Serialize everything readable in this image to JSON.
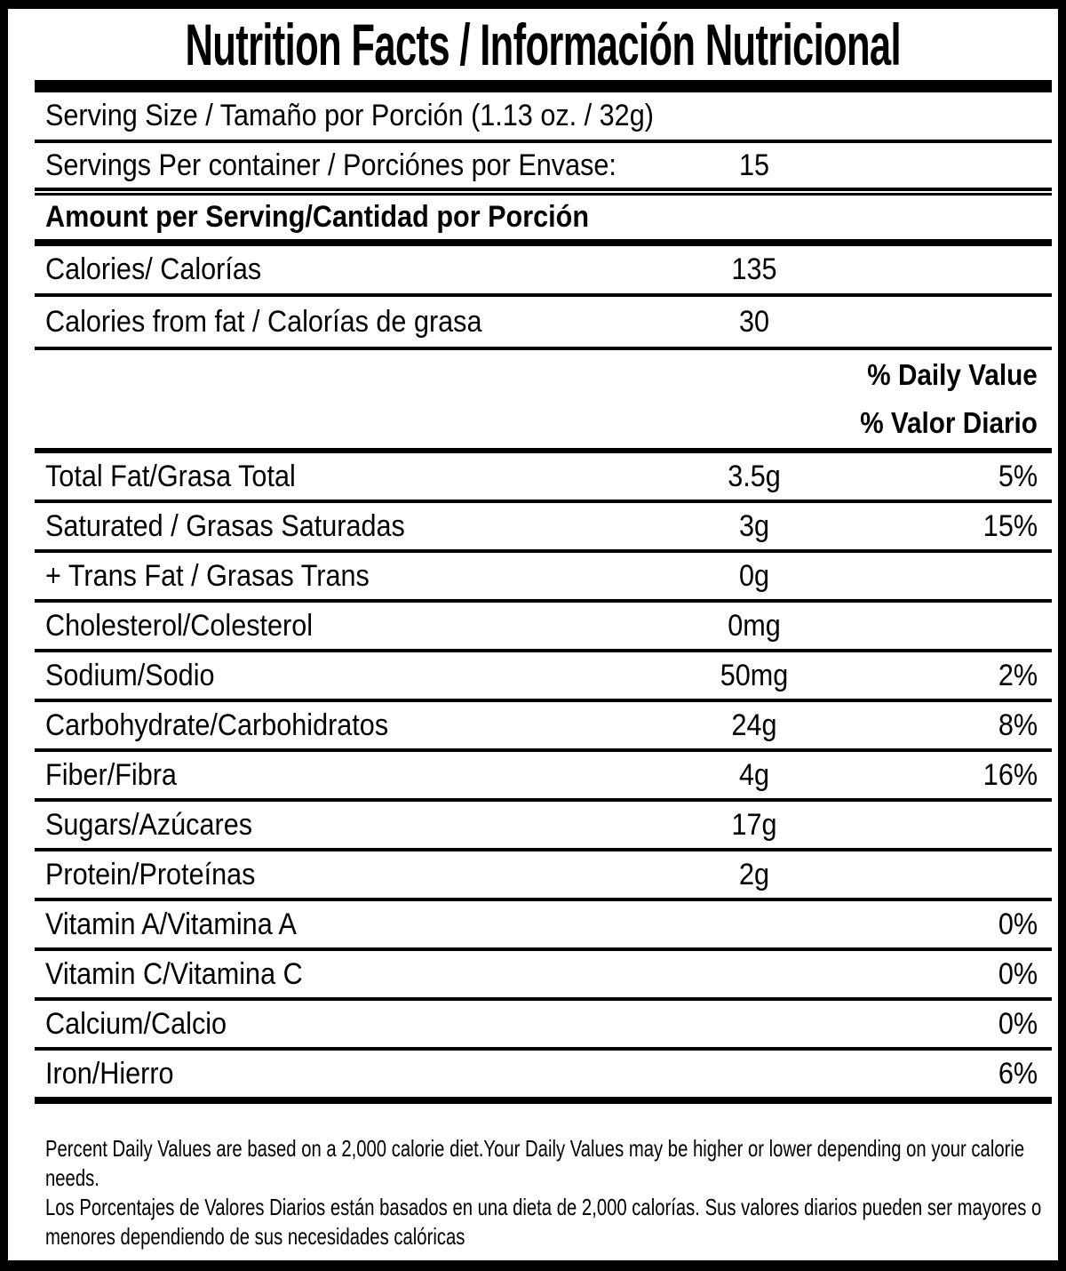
{
  "nutrition": {
    "title": "Nutrition Facts / Información Nutricional",
    "serving_size": {
      "label": "Serving Size / Tamaño por Porción (1.13 oz. / 32g)"
    },
    "servings_per_container": {
      "label": "Servings Per container / Porciónes por Envase:",
      "value": "15"
    },
    "amount_header": "Amount per Serving/Cantidad por Porción",
    "calories": {
      "label": "Calories/ Calorías",
      "value": "135"
    },
    "calories_from_fat": {
      "label": "Calories from fat / Calorías de grasa",
      "value": "30"
    },
    "daily_value_header_en": "% Daily Value",
    "daily_value_header_es": "% Valor Diario",
    "nutrients": [
      {
        "label": "Total Fat/Grasa Total",
        "amount": "3.5g",
        "dv": "5%"
      },
      {
        "label": "Saturated / Grasas Saturadas",
        "amount": "3g",
        "dv": "15%"
      },
      {
        "label": "+ Trans Fat / Grasas Trans",
        "amount": "0g",
        "dv": ""
      },
      {
        "label": "Cholesterol/Colesterol",
        "amount": "0mg",
        "dv": ""
      },
      {
        "label": "Sodium/Sodio",
        "amount": "50mg",
        "dv": "2%"
      },
      {
        "label": "Carbohydrate/Carbohidratos",
        "amount": "24g",
        "dv": "8%"
      },
      {
        "label": "Fiber/Fibra",
        "amount": "4g",
        "dv": "16%"
      },
      {
        "label": "Sugars/Azúcares",
        "amount": "17g",
        "dv": ""
      },
      {
        "label": "Protein/Proteínas",
        "amount": "2g",
        "dv": ""
      },
      {
        "label": "Vitamin A/Vitamina A",
        "amount": "",
        "dv": "0%"
      },
      {
        "label": "Vitamin C/Vitamina C",
        "amount": "",
        "dv": "0%"
      },
      {
        "label": "Calcium/Calcio",
        "amount": "",
        "dv": "0%"
      },
      {
        "label": "Iron/Hierro",
        "amount": "",
        "dv": "6%"
      }
    ],
    "footnote_en": "Percent Daily Values are based on a 2,000 calorie diet.Your Daily Values may be higher or lower depending on your calorie needs.",
    "footnote_es": "Los Porcentajes de Valores Diarios están basados en una dieta de 2,000 calorías. Sus valores diarios pueden ser mayores o menores dependiendo de sus necesidades calóricas",
    "colors": {
      "text": "#000000",
      "background": "#ffffff"
    }
  }
}
